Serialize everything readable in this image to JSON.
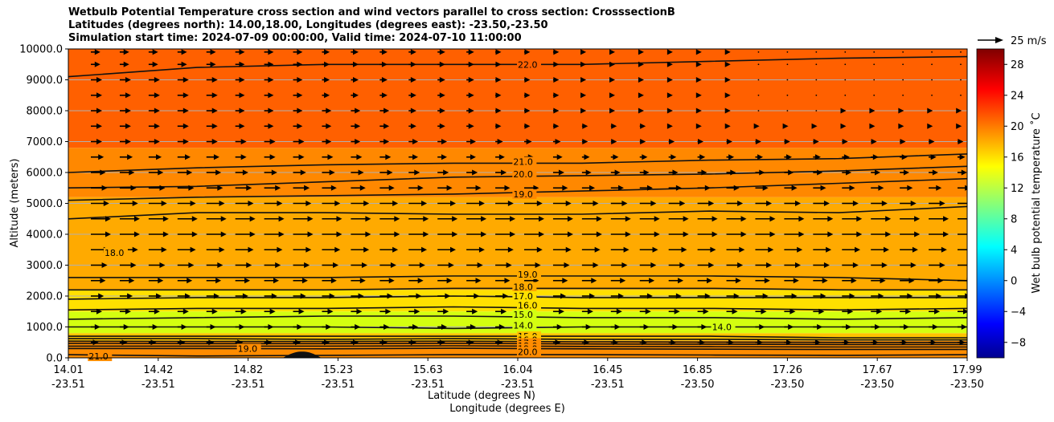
{
  "title": {
    "line1": "Wetbulb Potential Temperature cross section and wind vectors parallel to cross section: CrosssectionB",
    "line2": "Latitudes (degrees north): 14.00,18.00, Longitudes (degrees east): -23.50,-23.50",
    "line3": "Simulation start time: 2024-07-09 00:00:00, Valid time: 2024-07-10 11:00:00"
  },
  "chart_data": {
    "type": "contour",
    "xlabel_lat": "Latitude (degrees N)",
    "xlabel_lon": "Longitude (degrees E)",
    "ylabel": "Altitude (meters)",
    "ylim": [
      0,
      10000
    ],
    "y_ticks": [
      "0.0",
      "1000.0",
      "2000.0",
      "3000.0",
      "4000.0",
      "5000.0",
      "6000.0",
      "7000.0",
      "8000.0",
      "9000.0",
      "10000.0"
    ],
    "y_tick_values": [
      0,
      1000,
      2000,
      3000,
      4000,
      5000,
      6000,
      7000,
      8000,
      9000,
      10000
    ],
    "x_lat_ticks": [
      "14.01",
      "14.42",
      "14.82",
      "15.23",
      "15.63",
      "16.04",
      "16.45",
      "16.85",
      "17.26",
      "17.67",
      "17.99"
    ],
    "x_lon_ticks": [
      "-23.51",
      "-23.51",
      "-23.51",
      "-23.51",
      "-23.51",
      "-23.51",
      "-23.51",
      "-23.50",
      "-23.50",
      "-23.50",
      "-23.50"
    ],
    "xlim": [
      14.01,
      17.99
    ],
    "colorbar": {
      "label": "Wet bulb potential temperature ˚C",
      "ticks": [
        "−8",
        "−4",
        "0",
        "4",
        "8",
        "12",
        "16",
        "20",
        "24",
        "28"
      ],
      "tick_values": [
        -8,
        -4,
        0,
        4,
        8,
        12,
        16,
        20,
        24,
        28
      ],
      "range": [
        -10,
        30
      ]
    },
    "quiver_key": "25 m/s",
    "fill_bands": [
      {
        "from": 0,
        "to": 550,
        "value": 21,
        "color": "#ff8c00"
      },
      {
        "from": 550,
        "to": 800,
        "value": 16,
        "color": "#ffc300"
      },
      {
        "from": 800,
        "to": 1500,
        "value": 14,
        "color": "#d4ff10"
      },
      {
        "from": 1500,
        "to": 2200,
        "value": 16,
        "color": "#ffe000"
      },
      {
        "from": 2200,
        "to": 5200,
        "value": 18,
        "color": "#ffaa00"
      },
      {
        "from": 5200,
        "to": 6800,
        "value": 20,
        "color": "#ff8800"
      },
      {
        "from": 6800,
        "to": 10000,
        "value": 22,
        "color": "#ff6000"
      }
    ],
    "contours": [
      {
        "level": "22.0",
        "y": [
          9100,
          9400,
          9500,
          9500,
          9500,
          9600,
          9700,
          9750
        ]
      },
      {
        "level": "21.0",
        "y": [
          6000,
          6150,
          6250,
          6300,
          6300,
          6400,
          6450,
          6600
        ]
      },
      {
        "level": "20.0",
        "y": [
          5500,
          5550,
          5700,
          5850,
          5900,
          5950,
          6050,
          6200
        ]
      },
      {
        "level": "19.0",
        "y": [
          5100,
          5200,
          5250,
          5300,
          5400,
          5500,
          5650,
          5800
        ]
      },
      {
        "level": "19.0",
        "y": [
          4500,
          4700,
          4700,
          4650,
          4650,
          4750,
          4700,
          4900
        ]
      },
      {
        "level": "19.0",
        "y": [
          2600,
          2600,
          2600,
          2650,
          2650,
          2650,
          2600,
          2500
        ]
      },
      {
        "level": "18.0",
        "y": [
          2200,
          2200,
          2200,
          2250,
          2250,
          2250,
          2200,
          2200
        ]
      },
      {
        "level": "17.0",
        "y": [
          1900,
          1950,
          1950,
          2000,
          1950,
          1950,
          1950,
          1950
        ]
      },
      {
        "level": "16.0",
        "y": [
          1550,
          1600,
          1600,
          1650,
          1600,
          1600,
          1550,
          1600
        ]
      },
      {
        "level": "15.0",
        "y": [
          1250,
          1300,
          1350,
          1350,
          1300,
          1300,
          1250,
          1300
        ]
      },
      {
        "level": "14.0",
        "y": [
          1000,
          1000,
          1000,
          950,
          1000,
          1000,
          1000,
          1000
        ]
      },
      {
        "level": "15.0",
        "y": [
          700,
          700,
          700,
          700,
          700,
          700,
          650,
          650
        ]
      },
      {
        "level": "16.0",
        "y": [
          620,
          620,
          600,
          620,
          600,
          600,
          580,
          580
        ]
      },
      {
        "level": "17.0",
        "y": [
          540,
          530,
          530,
          540,
          520,
          510,
          500,
          500
        ]
      },
      {
        "level": "18.0",
        "y": [
          470,
          460,
          460,
          470,
          450,
          440,
          430,
          430
        ]
      },
      {
        "level": "19.0",
        "y": [
          380,
          380,
          380,
          390,
          370,
          360,
          350,
          350
        ]
      },
      {
        "level": "20.0",
        "y": [
          300,
          300,
          290,
          310,
          290,
          280,
          270,
          270
        ]
      },
      {
        "level": "21.0",
        "y": [
          100,
          60,
          80,
          100,
          100,
          90,
          80,
          100
        ]
      }
    ],
    "contour_labels": [
      {
        "text": "22.0",
        "x": 16.0,
        "y": 9500
      },
      {
        "text": "21.0",
        "x": 15.98,
        "y": 6350
      },
      {
        "text": "20.0",
        "x": 15.98,
        "y": 5950
      },
      {
        "text": "19.0",
        "x": 15.98,
        "y": 5300
      },
      {
        "text": "19.0",
        "x": 16.0,
        "y": 2700
      },
      {
        "text": "18.0",
        "x": 15.98,
        "y": 2300
      },
      {
        "text": "17.0",
        "x": 15.98,
        "y": 2000
      },
      {
        "text": "16.0",
        "x": 16.0,
        "y": 1700
      },
      {
        "text": "15.0",
        "x": 15.98,
        "y": 1400
      },
      {
        "text": "14.0",
        "x": 15.98,
        "y": 1050
      },
      {
        "text": "15.0",
        "x": 16.0,
        "y": 700
      },
      {
        "text": "16.0",
        "x": 16.0,
        "y": 580
      },
      {
        "text": "17.0",
        "x": 16.0,
        "y": 480
      },
      {
        "text": "18.0",
        "x": 16.0,
        "y": 390
      },
      {
        "text": "19.0",
        "x": 16.0,
        "y": 300
      },
      {
        "text": "20.0",
        "x": 16.0,
        "y": 200
      },
      {
        "text": "21.0",
        "x": 14.1,
        "y": 50
      },
      {
        "text": "19.0",
        "x": 14.76,
        "y": 300
      },
      {
        "text": "18.0",
        "x": 14.17,
        "y": 3400
      },
      {
        "text": "14.0",
        "x": 16.86,
        "y": 1000
      }
    ],
    "wind_rows": [
      {
        "alt": 9900,
        "speeds": [
          4,
          4,
          4,
          3,
          3,
          2,
          1,
          1,
          0.5,
          0.5,
          0.5
        ]
      },
      {
        "alt": 9500,
        "speeds": [
          4,
          4,
          4,
          3,
          3,
          2,
          1,
          1,
          0.5,
          0.5,
          0.5
        ]
      },
      {
        "alt": 9000,
        "speeds": [
          5,
          5,
          4,
          3,
          3,
          2,
          1,
          1,
          0.5,
          0.5,
          0.5
        ]
      },
      {
        "alt": 8500,
        "speeds": [
          5,
          5,
          4,
          3,
          3,
          2,
          1,
          1,
          0.5,
          0.5,
          0.5
        ]
      },
      {
        "alt": 8000,
        "speeds": [
          5,
          5,
          4,
          4,
          3,
          2,
          1,
          1,
          0.5,
          1,
          1
        ]
      },
      {
        "alt": 7500,
        "speeds": [
          5,
          5,
          4,
          4,
          3,
          2,
          2,
          1,
          1,
          1,
          1
        ]
      },
      {
        "alt": 7000,
        "speeds": [
          5,
          5,
          5,
          4,
          4,
          3,
          2,
          2,
          2,
          2,
          2
        ]
      },
      {
        "alt": 6500,
        "speeds": [
          6,
          6,
          5,
          5,
          4,
          4,
          3,
          3,
          3,
          3,
          3
        ]
      },
      {
        "alt": 6000,
        "speeds": [
          7,
          7,
          6,
          6,
          5,
          5,
          4,
          4,
          4,
          4,
          4
        ]
      },
      {
        "alt": 5500,
        "speeds": [
          8,
          8,
          8,
          7,
          7,
          7,
          6,
          6,
          6,
          6,
          6
        ]
      },
      {
        "alt": 5000,
        "speeds": [
          9,
          9,
          9,
          9,
          9,
          9,
          8,
          8,
          8,
          8,
          8
        ]
      },
      {
        "alt": 4500,
        "speeds": [
          10,
          10,
          10,
          10,
          10,
          10,
          10,
          10,
          10,
          10,
          10
        ]
      },
      {
        "alt": 4000,
        "speeds": [
          10,
          10,
          10,
          10,
          10,
          10,
          10,
          10,
          10,
          10,
          10
        ]
      },
      {
        "alt": 3500,
        "speeds": [
          9,
          9,
          9,
          9,
          9,
          9,
          9,
          9,
          9,
          9,
          9
        ]
      },
      {
        "alt": 3000,
        "speeds": [
          8,
          8,
          8,
          8,
          8,
          8,
          8,
          8,
          8,
          8,
          8
        ]
      },
      {
        "alt": 2500,
        "speeds": [
          7,
          7,
          7,
          7,
          7,
          7,
          7,
          7,
          7,
          7,
          7
        ]
      },
      {
        "alt": 2000,
        "speeds": [
          6,
          6,
          6,
          6,
          6,
          6,
          6,
          6,
          6,
          6,
          6
        ]
      },
      {
        "alt": 1500,
        "speeds": [
          5,
          5,
          5,
          5,
          5,
          5,
          5,
          5,
          5,
          5,
          5
        ]
      },
      {
        "alt": 1000,
        "speeds": [
          4,
          4,
          4,
          4,
          4,
          4,
          4,
          4,
          4,
          4,
          4
        ]
      },
      {
        "alt": 500,
        "speeds": [
          3,
          3,
          3,
          3,
          3,
          3,
          3,
          3,
          3,
          3,
          3
        ]
      }
    ]
  }
}
